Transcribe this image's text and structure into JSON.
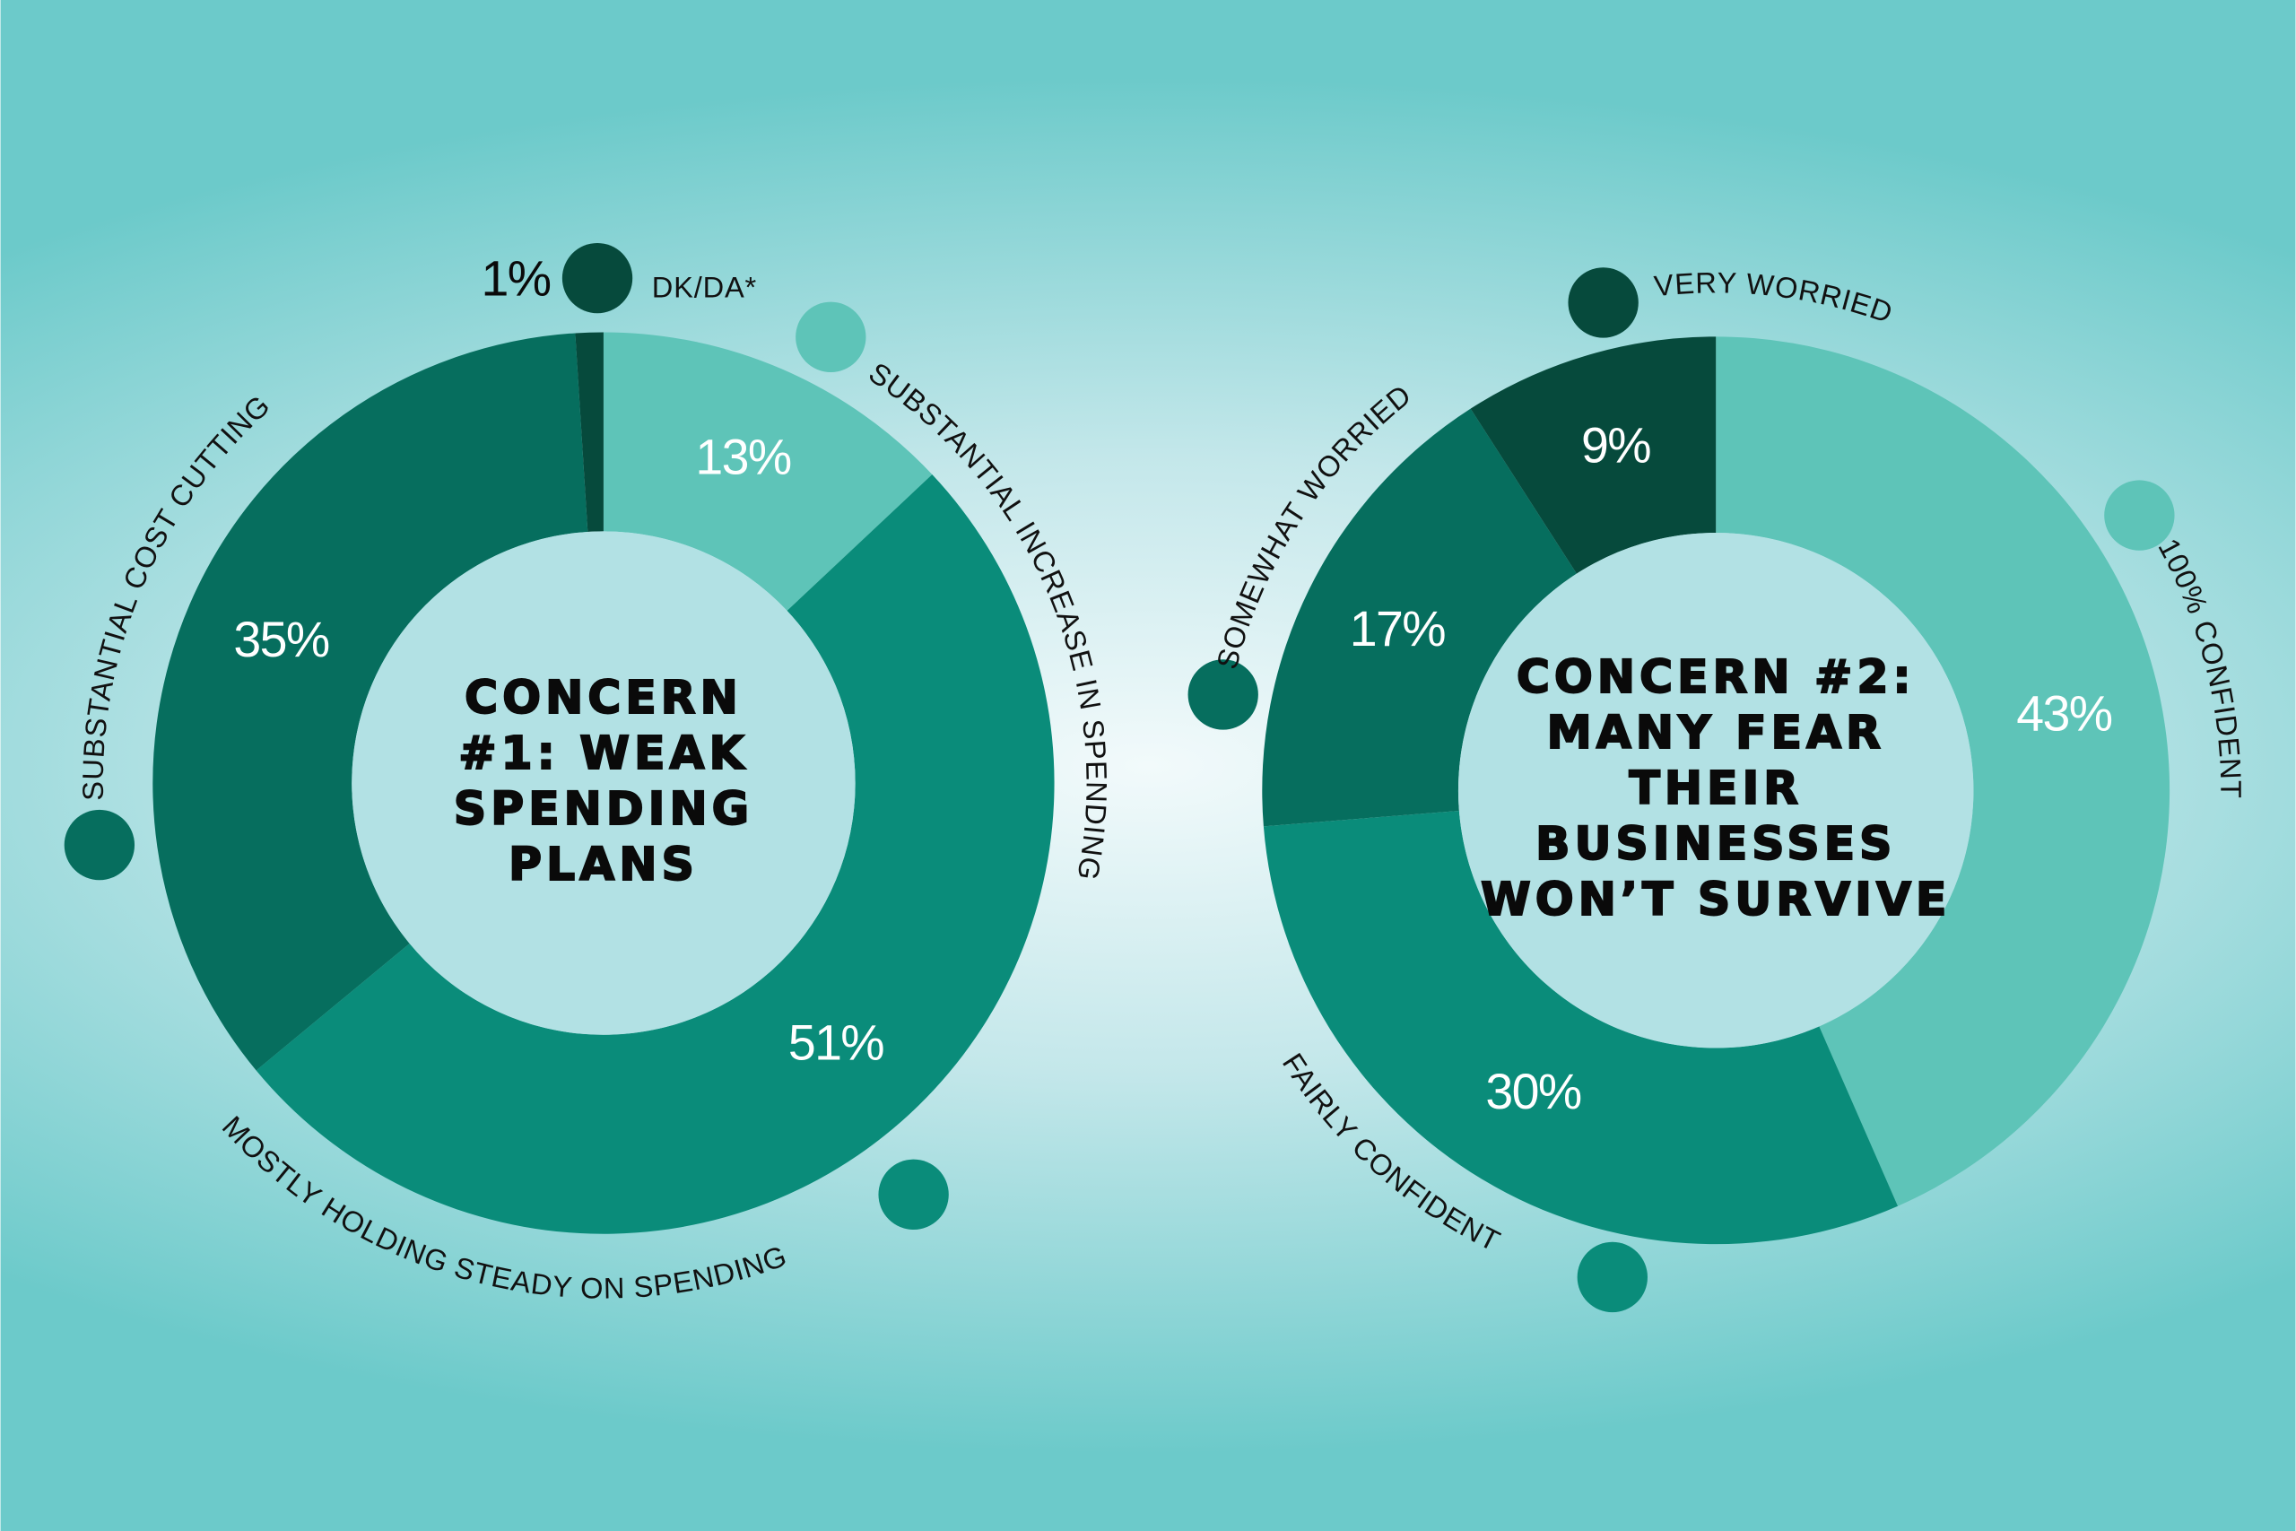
{
  "chart_data": [
    {
      "type": "pie",
      "donut": true,
      "title": "CONCERN #1: WEAK SPENDING PLANS",
      "categories": [
        "SUBSTANTIAL INCREASE IN SPENDING",
        "MOSTLY HOLDING STEADY ON SPENDING",
        "SUBSTANTIAL COST CUTTING",
        "DK/DA*"
      ],
      "values": [
        13,
        51,
        35,
        1
      ],
      "value_labels": [
        "13%",
        "51%",
        "35%",
        "1%"
      ],
      "colors": [
        "#5ec4b8",
        "#0a8c7a",
        "#066e5e",
        "#064a3c"
      ]
    },
    {
      "type": "pie",
      "donut": true,
      "title": "CONCERN #2: MANY FEAR THEIR BUSINESSES WON’T SURVIVE",
      "categories": [
        "100% CONFIDENT",
        "FAIRLY CONFIDENT",
        "SOMEWHAT WORRIED",
        "VERY WORRIED"
      ],
      "values": [
        43,
        30,
        17,
        9
      ],
      "value_labels": [
        "43%",
        "30%",
        "17%",
        "9%"
      ],
      "colors": [
        "#5ec4b8",
        "#0a8c7a",
        "#066e5e",
        "#064a3c"
      ]
    }
  ]
}
